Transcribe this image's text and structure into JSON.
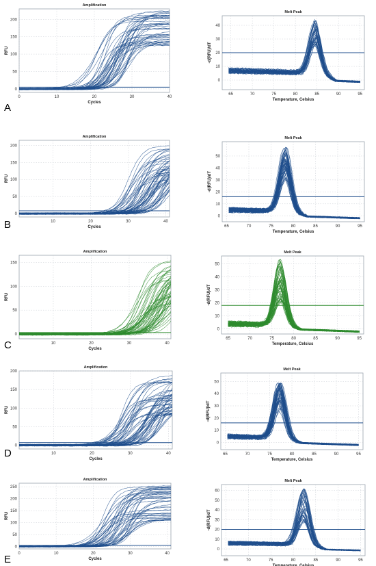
{
  "panels": [
    {
      "label": "A",
      "color": "#1f4e8c",
      "amp": {
        "title": "Amplification",
        "xlabel": "Cycles",
        "ylabel": "RFU",
        "xlim": [
          0,
          40
        ],
        "ylim": [
          -10,
          230
        ],
        "xticks": [
          0,
          10,
          20,
          30,
          40
        ],
        "yticks": [
          0,
          50,
          100,
          150,
          200
        ],
        "threshold": 5,
        "curve_count": 45,
        "ct_range": [
          17,
          27
        ],
        "plateau_range": [
          120,
          225
        ]
      },
      "melt": {
        "title": "Melt Peak",
        "xlabel": "Temperature, Celsius",
        "ylabel": "-d(RFU)/dT",
        "xlim": [
          63,
          96
        ],
        "ylim": [
          -7,
          47
        ],
        "xticks": [
          65,
          70,
          75,
          80,
          85,
          90,
          95
        ],
        "yticks": [
          0,
          10,
          20,
          30,
          40
        ],
        "threshold": 20,
        "curve_count": 45,
        "peak_temp": 84.5,
        "peak_range": [
          26,
          44
        ],
        "baseline": 7
      }
    },
    {
      "label": "B",
      "color": "#1f4e8c",
      "amp": {
        "title": "Amplification",
        "xlabel": "Cycles",
        "ylabel": "RFU",
        "xlim": [
          1,
          41
        ],
        "ylim": [
          -10,
          215
        ],
        "xticks": [
          10,
          20,
          30,
          40
        ],
        "yticks": [
          0,
          50,
          100,
          150,
          200
        ],
        "threshold": 8,
        "curve_count": 60,
        "ct_range": [
          27,
          38
        ],
        "plateau_range": [
          90,
          200
        ]
      },
      "melt": {
        "title": "Melt Peak",
        "xlabel": "Temperature, Celsius",
        "ylabel": "-d(RFU)/dT",
        "xlim": [
          64,
          96
        ],
        "ylim": [
          -5,
          62
        ],
        "xticks": [
          65,
          70,
          75,
          80,
          85,
          90,
          95
        ],
        "yticks": [
          0,
          10,
          20,
          30,
          40,
          50
        ],
        "threshold": 16,
        "curve_count": 60,
        "peak_temp": 78.2,
        "peak_range": [
          30,
          58
        ],
        "baseline": 5
      }
    },
    {
      "label": "C",
      "color": "#2e8b2e",
      "amp": {
        "title": "Amplification",
        "xlabel": "Cycles",
        "ylabel": "RFU",
        "xlim": [
          1,
          41
        ],
        "ylim": [
          -10,
          165
        ],
        "xticks": [
          10,
          20,
          30,
          40
        ],
        "yticks": [
          0,
          50,
          100,
          150
        ],
        "threshold": 3,
        "curve_count": 60,
        "ct_range": [
          29,
          39
        ],
        "plateau_range": [
          60,
          160
        ]
      },
      "melt": {
        "title": "Melt Peak",
        "xlabel": "Temperature, Celsius",
        "ylabel": "-d(RFU)/dT",
        "xlim": [
          63.5,
          96
        ],
        "ylim": [
          -4,
          56
        ],
        "xticks": [
          65,
          70,
          75,
          80,
          85,
          90,
          95
        ],
        "yticks": [
          0,
          10,
          20,
          30,
          40,
          50
        ],
        "threshold": 18,
        "curve_count": 60,
        "peak_temp": 76.8,
        "peak_range": [
          18,
          54
        ],
        "baseline": 4
      }
    },
    {
      "label": "D",
      "color": "#1f4e8c",
      "amp": {
        "title": "Amplification",
        "xlabel": "Cycles",
        "ylabel": "RFU",
        "xlim": [
          1,
          41
        ],
        "ylim": [
          -10,
          200
        ],
        "xticks": [
          10,
          20,
          30,
          40
        ],
        "yticks": [
          0,
          50,
          100,
          150,
          200
        ],
        "threshold": 7,
        "curve_count": 60,
        "ct_range": [
          24,
          36
        ],
        "plateau_range": [
          80,
          190
        ]
      },
      "melt": {
        "title": "Melt Peak",
        "xlabel": "Temperature, Celsius",
        "ylabel": "-d(RFU)/dT",
        "xlim": [
          64,
          96
        ],
        "ylim": [
          -6,
          57
        ],
        "xticks": [
          65,
          70,
          75,
          80,
          85,
          90,
          95
        ],
        "yticks": [
          0,
          10,
          20,
          30,
          40,
          50
        ],
        "threshold": 16,
        "curve_count": 60,
        "peak_temp": 77.2,
        "peak_range": [
          26,
          50
        ],
        "baseline": 5
      }
    },
    {
      "label": "E",
      "color": "#1f4e8c",
      "amp": {
        "title": "Amplification",
        "xlabel": "Cycles",
        "ylabel": "RFU",
        "xlim": [
          0,
          41
        ],
        "ylim": [
          -10,
          265
        ],
        "xticks": [
          0,
          10,
          20,
          30,
          40
        ],
        "yticks": [
          0,
          50,
          100,
          150,
          200,
          250
        ],
        "threshold": 5,
        "curve_count": 45,
        "ct_range": [
          19,
          28
        ],
        "plateau_range": [
          110,
          255
        ]
      },
      "melt": {
        "title": "Melt Peak",
        "xlabel": "Temperature, Celsius",
        "ylabel": "-d(RFU)/dT",
        "xlim": [
          64,
          96
        ],
        "ylim": [
          -7,
          66
        ],
        "xticks": [
          65,
          70,
          75,
          80,
          85,
          90,
          95
        ],
        "yticks": [
          0,
          10,
          20,
          30,
          40,
          50,
          60
        ],
        "threshold": 20,
        "curve_count": 45,
        "peak_temp": 82.3,
        "peak_range": [
          28,
          62
        ],
        "baseline": 6
      }
    }
  ],
  "chart_data": [
    {
      "panel": "A",
      "chart": "Amplification",
      "type": "line",
      "title": "Amplification",
      "xlabel": "Cycles",
      "ylabel": "RFU",
      "xlim": [
        0,
        40
      ],
      "ylim": [
        -10,
        230
      ],
      "grid": true,
      "threshold": 5,
      "curve_count": 45,
      "ct_range": [
        17,
        27
      ],
      "plateau_range": [
        120,
        225
      ]
    },
    {
      "panel": "A",
      "chart": "Melt Peak",
      "type": "line",
      "title": "Melt Peak",
      "xlabel": "Temperature, Celsius",
      "ylabel": "-d(RFU)/dT",
      "xlim": [
        63,
        96
      ],
      "ylim": [
        -7,
        47
      ],
      "grid": true,
      "threshold": 20,
      "peak_temp": 84.5,
      "peak_range": [
        26,
        44
      ]
    },
    {
      "panel": "B",
      "chart": "Amplification",
      "type": "line",
      "title": "Amplification",
      "xlabel": "Cycles",
      "ylabel": "RFU",
      "xlim": [
        1,
        41
      ],
      "ylim": [
        -10,
        215
      ],
      "grid": true,
      "threshold": 8,
      "curve_count": 60,
      "ct_range": [
        27,
        38
      ],
      "plateau_range": [
        90,
        200
      ]
    },
    {
      "panel": "B",
      "chart": "Melt Peak",
      "type": "line",
      "title": "Melt Peak",
      "xlabel": "Temperature, Celsius",
      "ylabel": "-d(RFU)/dT",
      "xlim": [
        64,
        96
      ],
      "ylim": [
        -5,
        62
      ],
      "grid": true,
      "threshold": 16,
      "peak_temp": 78.2,
      "peak_range": [
        30,
        58
      ]
    },
    {
      "panel": "C",
      "chart": "Amplification",
      "type": "line",
      "title": "Amplification",
      "xlabel": "Cycles",
      "ylabel": "RFU",
      "xlim": [
        1,
        41
      ],
      "ylim": [
        -10,
        165
      ],
      "grid": true,
      "threshold": 3,
      "curve_count": 60,
      "ct_range": [
        29,
        39
      ],
      "plateau_range": [
        60,
        160
      ]
    },
    {
      "panel": "C",
      "chart": "Melt Peak",
      "type": "line",
      "title": "Melt Peak",
      "xlabel": "Temperature, Celsius",
      "ylabel": "-d(RFU)/dT",
      "xlim": [
        63.5,
        96
      ],
      "ylim": [
        -4,
        56
      ],
      "grid": true,
      "threshold": 18,
      "peak_temp": 76.8,
      "peak_range": [
        18,
        54
      ]
    },
    {
      "panel": "D",
      "chart": "Amplification",
      "type": "line",
      "title": "Amplification",
      "xlabel": "Cycles",
      "ylabel": "RFU",
      "xlim": [
        1,
        41
      ],
      "ylim": [
        -10,
        200
      ],
      "grid": true,
      "threshold": 7,
      "curve_count": 60,
      "ct_range": [
        24,
        36
      ],
      "plateau_range": [
        80,
        190
      ]
    },
    {
      "panel": "D",
      "chart": "Melt Peak",
      "type": "line",
      "title": "Melt Peak",
      "xlabel": "Temperature, Celsius",
      "ylabel": "-d(RFU)/dT",
      "xlim": [
        64,
        96
      ],
      "ylim": [
        -6,
        57
      ],
      "grid": true,
      "threshold": 16,
      "peak_temp": 77.2,
      "peak_range": [
        26,
        50
      ]
    },
    {
      "panel": "E",
      "chart": "Amplification",
      "type": "line",
      "title": "Amplification",
      "xlabel": "Cycles",
      "ylabel": "RFU",
      "xlim": [
        0,
        41
      ],
      "ylim": [
        -10,
        265
      ],
      "grid": true,
      "threshold": 5,
      "curve_count": 45,
      "ct_range": [
        19,
        28
      ],
      "plateau_range": [
        110,
        255
      ]
    },
    {
      "panel": "E",
      "chart": "Melt Peak",
      "type": "line",
      "title": "Melt Peak",
      "xlabel": "Temperature, Celsius",
      "ylabel": "-d(RFU)/dT",
      "xlim": [
        64,
        96
      ],
      "ylim": [
        -7,
        66
      ],
      "grid": true,
      "threshold": 20,
      "peak_temp": 82.3,
      "peak_range": [
        28,
        62
      ]
    }
  ]
}
